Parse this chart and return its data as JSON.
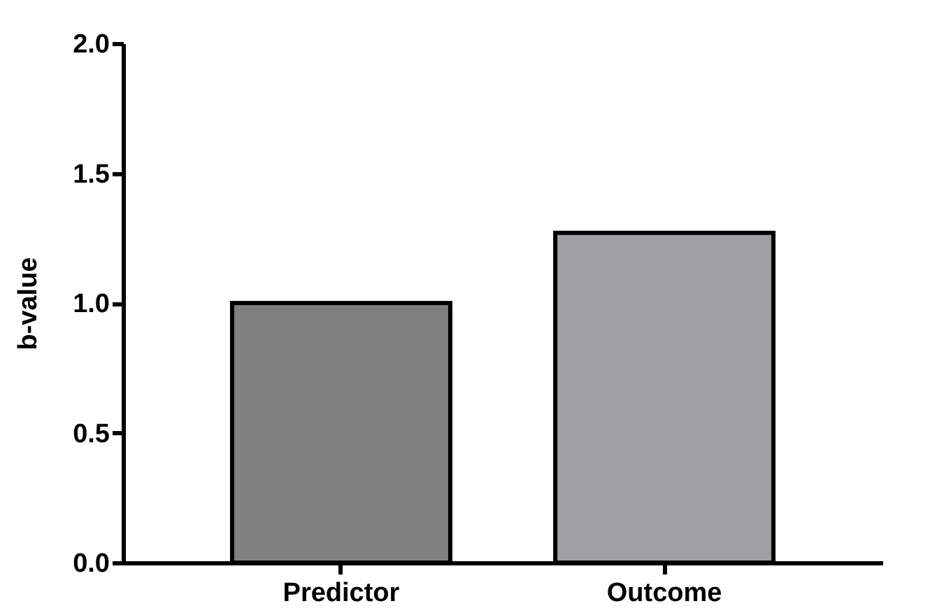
{
  "chart_data": {
    "type": "bar",
    "ylabel": "b-value",
    "categories": [
      "Predictor",
      "Outcome"
    ],
    "values": [
      1.0,
      1.27
    ],
    "colors": [
      "#808080",
      "#a09fa4"
    ],
    "ylim": [
      0,
      2
    ],
    "yticks": [
      {
        "value": 0,
        "label": "0.0"
      },
      {
        "value": 0.5,
        "label": "0.5"
      },
      {
        "value": 1,
        "label": "1.0"
      },
      {
        "value": 1.5,
        "label": "1.5"
      },
      {
        "value": 2,
        "label": "2.0"
      }
    ],
    "grid": false
  }
}
